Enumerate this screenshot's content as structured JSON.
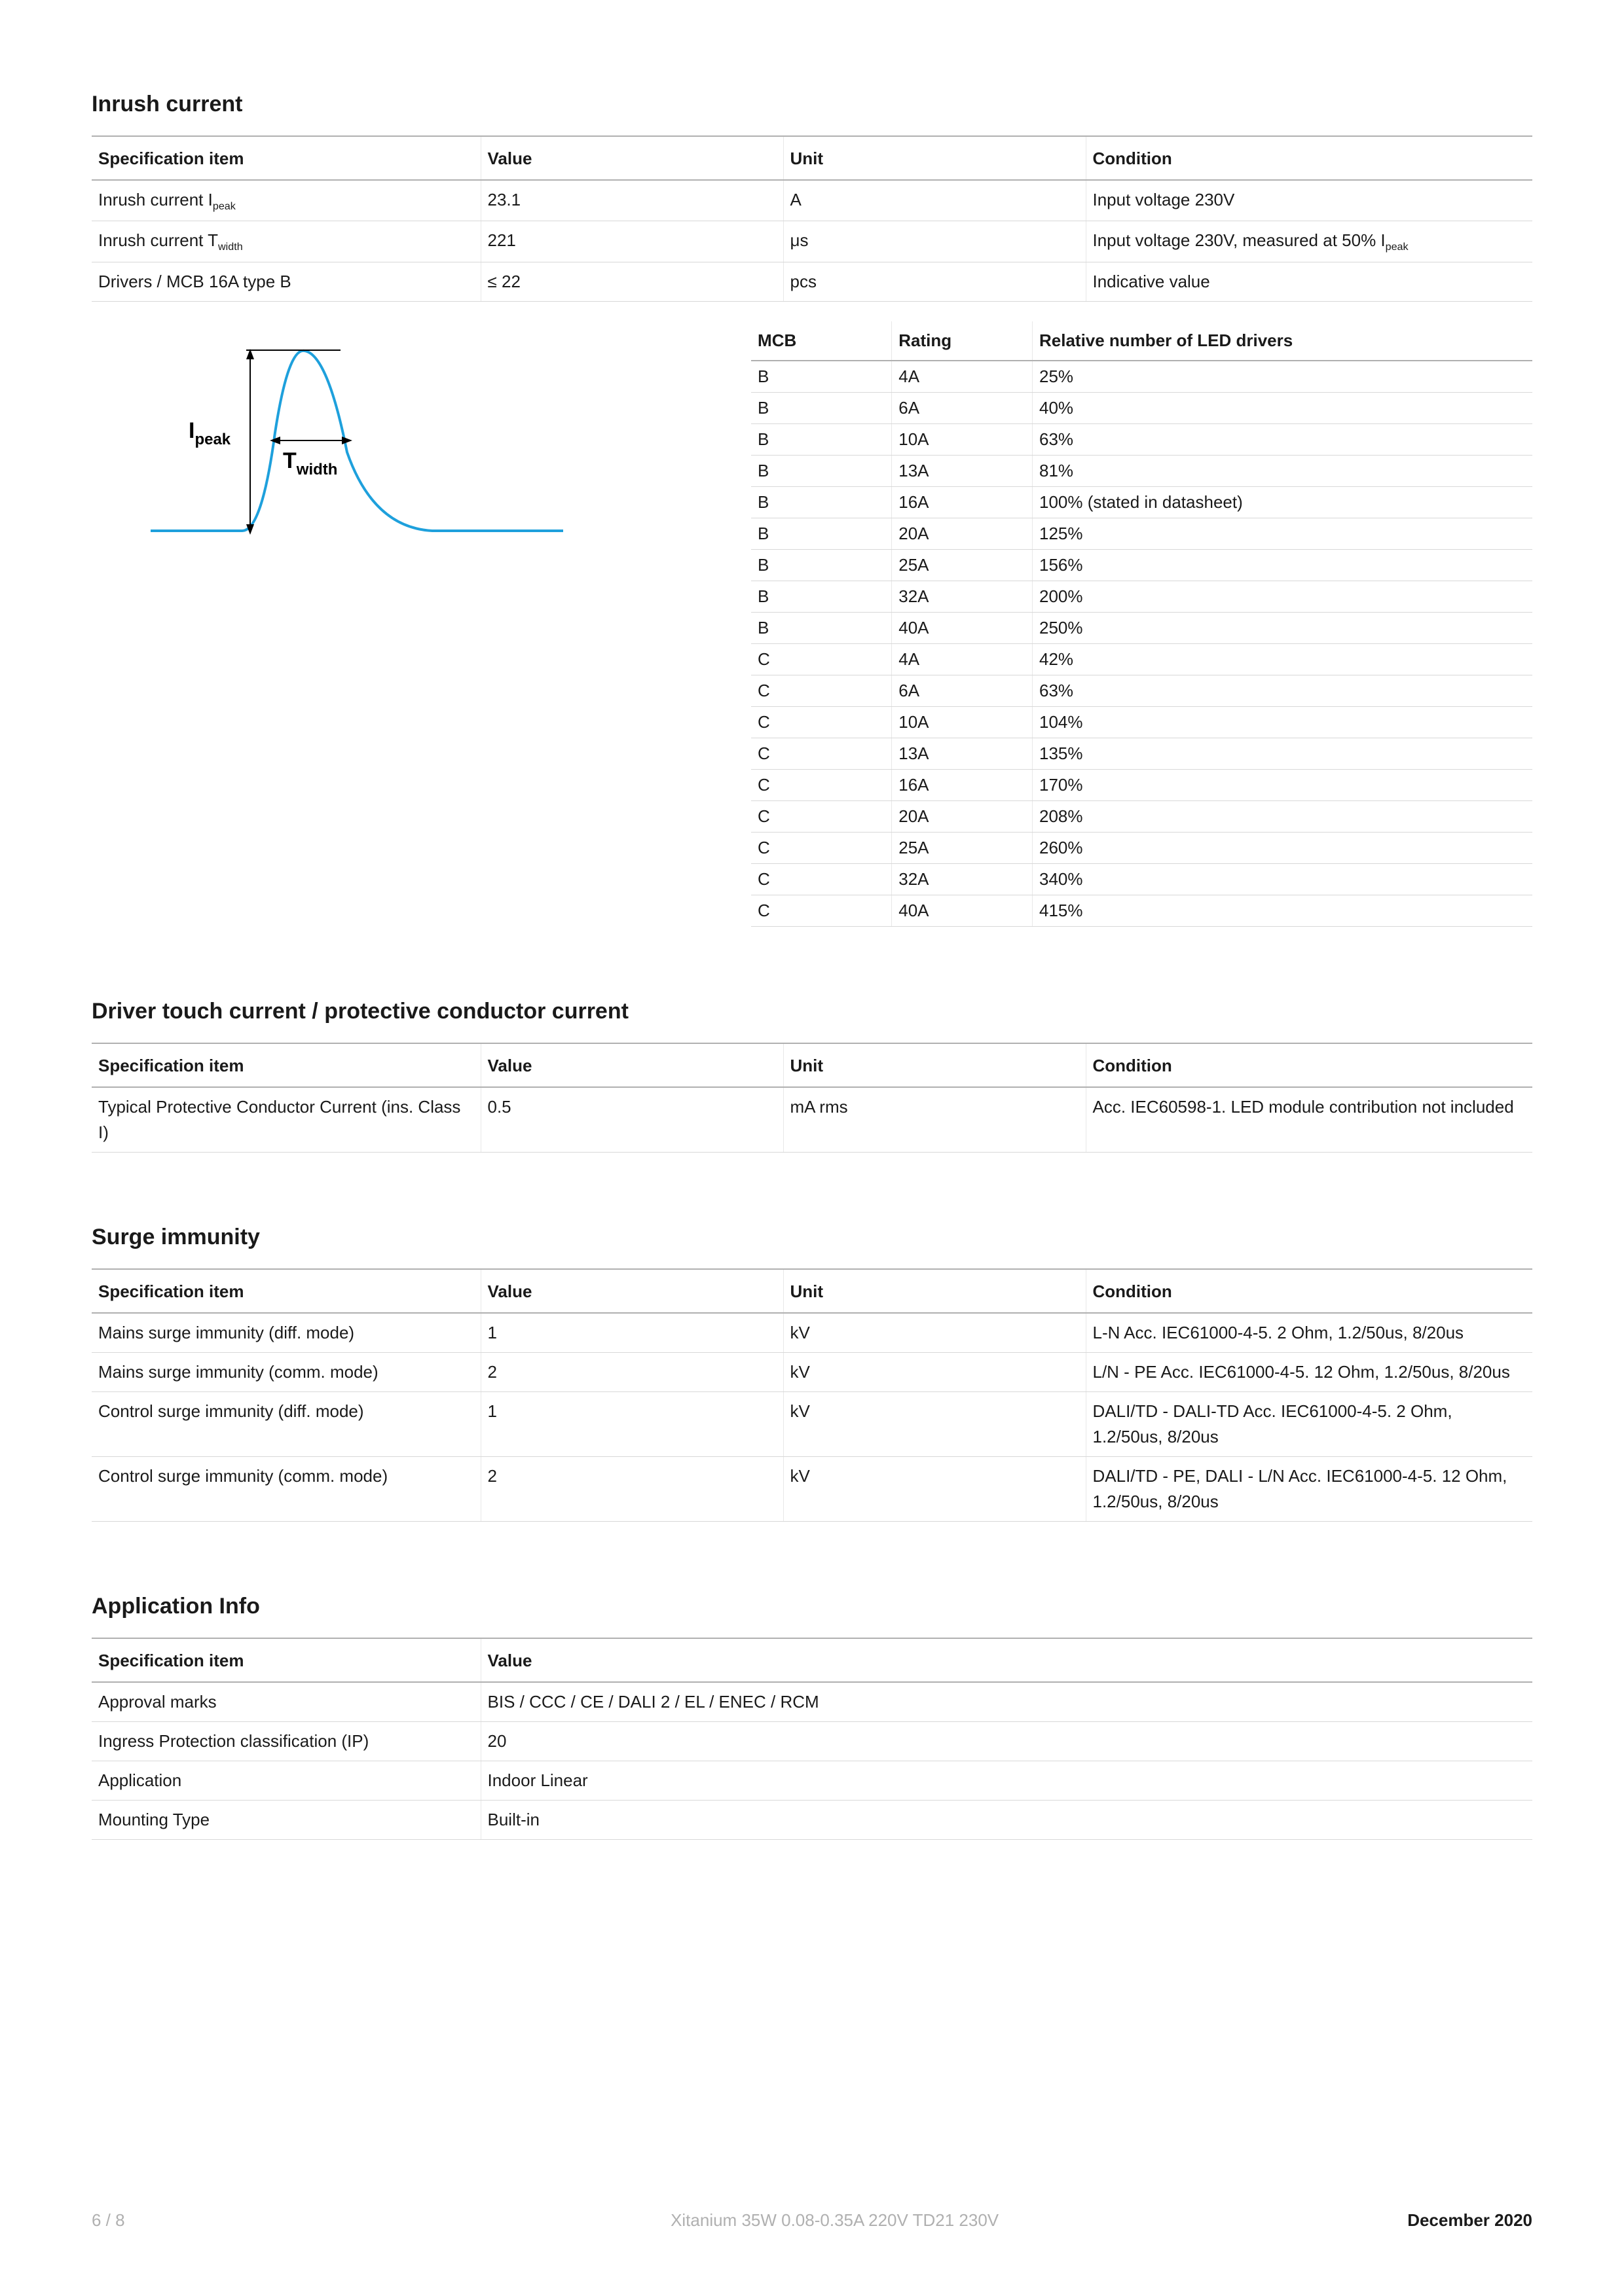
{
  "colors": {
    "text": "#1a1a1a",
    "muted": "#b0b0b0",
    "rule_thick": "#b0b0b0",
    "rule_thin": "#d8d8d8",
    "curve": "#1ea0dc",
    "arrow": "#000000",
    "background": "#ffffff"
  },
  "sections": {
    "inrush": {
      "title": "Inrush current",
      "headers": [
        "Specification item",
        "Value",
        "Unit",
        "Condition"
      ],
      "rows": [
        {
          "spec_html": "Inrush current I<sub>peak</sub>",
          "value": "23.1",
          "unit": "A",
          "cond": "Input voltage 230V"
        },
        {
          "spec_html": "Inrush current T<sub>width</sub>",
          "value": "221",
          "unit": "μs",
          "cond_html": "Input voltage 230V, measured at 50% I<sub>peak</sub>"
        },
        {
          "spec_html": "Drivers / MCB 16A type B",
          "value": "≤ 22",
          "unit": "pcs",
          "cond": "Indicative value"
        }
      ],
      "diagram": {
        "labels": {
          "ipeak_html": "I<tspan baseline-shift='-6' font-size='20'>peak</tspan>",
          "twidth_html": "T<tspan baseline-shift='-6' font-size='20'>width</tspan>"
        },
        "curve_color": "#1ea0dc",
        "arrow_color": "#000000",
        "line_width": 3
      },
      "mcb": {
        "headers": [
          "MCB",
          "Rating",
          "Relative number of LED drivers"
        ],
        "rows": [
          [
            "B",
            "4A",
            "25%"
          ],
          [
            "B",
            "6A",
            "40%"
          ],
          [
            "B",
            "10A",
            "63%"
          ],
          [
            "B",
            "13A",
            "81%"
          ],
          [
            "B",
            "16A",
            "100% (stated in datasheet)"
          ],
          [
            "B",
            "20A",
            "125%"
          ],
          [
            "B",
            "25A",
            "156%"
          ],
          [
            "B",
            "32A",
            "200%"
          ],
          [
            "B",
            "40A",
            "250%"
          ],
          [
            "C",
            "4A",
            "42%"
          ],
          [
            "C",
            "6A",
            "63%"
          ],
          [
            "C",
            "10A",
            "104%"
          ],
          [
            "C",
            "13A",
            "135%"
          ],
          [
            "C",
            "16A",
            "170%"
          ],
          [
            "C",
            "20A",
            "208%"
          ],
          [
            "C",
            "25A",
            "260%"
          ],
          [
            "C",
            "32A",
            "340%"
          ],
          [
            "C",
            "40A",
            "415%"
          ]
        ]
      }
    },
    "touch": {
      "title": "Driver touch current / protective conductor current",
      "headers": [
        "Specification item",
        "Value",
        "Unit",
        "Condition"
      ],
      "rows": [
        {
          "spec": "Typical Protective Conductor Current (ins. Class I)",
          "value": "0.5",
          "unit": "mA rms",
          "cond": "Acc. IEC60598-1. LED module contribution not included"
        }
      ]
    },
    "surge": {
      "title": "Surge immunity",
      "headers": [
        "Specification item",
        "Value",
        "Unit",
        "Condition"
      ],
      "rows": [
        {
          "spec": "Mains surge immunity (diff. mode)",
          "value": "1",
          "unit": "kV",
          "cond": "L-N Acc. IEC61000-4-5. 2 Ohm, 1.2/50us, 8/20us"
        },
        {
          "spec": "Mains surge immunity (comm. mode)",
          "value": "2",
          "unit": "kV",
          "cond": "L/N - PE Acc. IEC61000-4-5. 12 Ohm, 1.2/50us, 8/20us"
        },
        {
          "spec": "Control surge immunity (diff. mode)",
          "value": "1",
          "unit": "kV",
          "cond": "DALI/TD - DALI-TD Acc. IEC61000-4-5. 2 Ohm, 1.2/50us, 8/20us"
        },
        {
          "spec": "Control surge immunity (comm. mode)",
          "value": "2",
          "unit": "kV",
          "cond": "DALI/TD - PE, DALI - L/N Acc. IEC61000-4-5. 12 Ohm, 1.2/50us, 8/20us"
        }
      ]
    },
    "app": {
      "title": "Application Info",
      "headers": [
        "Specification item",
        "Value"
      ],
      "rows": [
        {
          "spec": "Approval marks",
          "value": "BIS / CCC / CE / DALI 2 / EL / ENEC / RCM"
        },
        {
          "spec": "Ingress Protection classification (IP)",
          "value": "20"
        },
        {
          "spec": "Application",
          "value": "Indoor Linear"
        },
        {
          "spec": "Mounting Type",
          "value": "Built-in"
        }
      ]
    }
  },
  "footer": {
    "page": "6 / 8",
    "product": "Xitanium 35W 0.08-0.35A 220V TD21 230V",
    "date": "December 2020"
  }
}
